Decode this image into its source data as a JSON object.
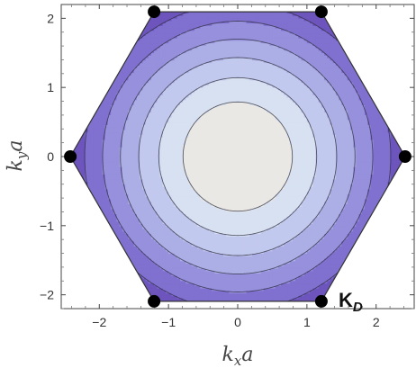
{
  "chart_data": {
    "type": "heatmap",
    "subtype": "filled-contour",
    "title": "",
    "xlabel": {
      "base": "k",
      "sub": "x",
      "tail": "a"
    },
    "ylabel": {
      "base": "k",
      "sub": "y",
      "tail": "a"
    },
    "xlim": [
      -2.55,
      2.55
    ],
    "ylim": [
      -2.2,
      2.2
    ],
    "xticks": [
      -2,
      -1,
      0,
      1,
      2
    ],
    "yticks": [
      -2,
      -1,
      0,
      1,
      2
    ],
    "xtick_labels": [
      "−2",
      "−1",
      "0",
      "1",
      "2"
    ],
    "ytick_labels": [
      "−2",
      "−1",
      "0",
      "1",
      "2"
    ],
    "grid": false,
    "frame": true,
    "region": "hexagonal Brillouin zone",
    "colormap": [
      "#3e1578",
      "#4b2690",
      "#5b3ba7",
      "#6d55bd",
      "#8070cf",
      "#9690dd",
      "#acaee6",
      "#c2c9ee",
      "#d7e1f1",
      "#eae8e4",
      "#f4ead9"
    ],
    "contour_levels": 10,
    "function": "E(k) = 3 + 2cos(kx a) + 4cos(kx a/2)cos(ky a·√3/2)",
    "points": [
      {
        "x": 1.2092,
        "y": 2.0944,
        "label": ""
      },
      {
        "x": -1.2092,
        "y": 2.0944,
        "label": ""
      },
      {
        "x": -2.4184,
        "y": 0,
        "label": ""
      },
      {
        "x": -1.2092,
        "y": -2.0944,
        "label": ""
      },
      {
        "x": 1.2092,
        "y": -2.0944,
        "label": "K",
        "label_sub": "D"
      },
      {
        "x": 2.4184,
        "y": 0,
        "label": ""
      }
    ]
  }
}
